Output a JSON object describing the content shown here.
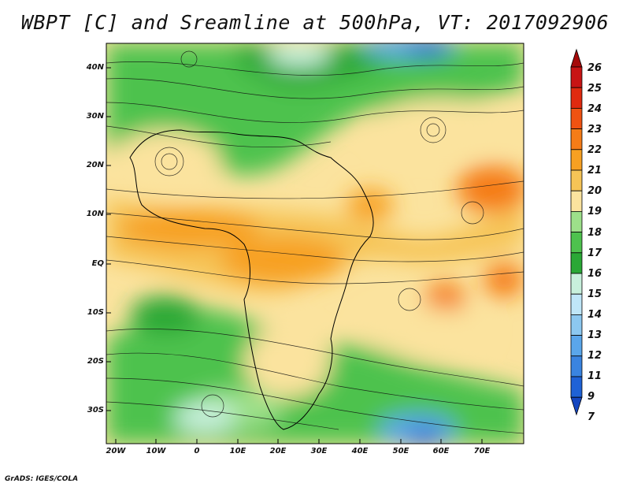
{
  "title": "WBPT [C] and Sreamline at 500hPa, VT: 2017092906",
  "credit": "GrADS: IGES/COLA",
  "map": {
    "lat_labels": [
      "40N",
      "30N",
      "20N",
      "10N",
      "EQ",
      "10S",
      "20S",
      "30S"
    ],
    "lon_labels": [
      "20W",
      "10W",
      "0",
      "10E",
      "20E",
      "30E",
      "40E",
      "50E",
      "60E",
      "70E"
    ]
  },
  "colorbar": {
    "labels": [
      "26",
      "25",
      "24",
      "23",
      "22",
      "21",
      "20",
      "19",
      "18",
      "17",
      "16",
      "15",
      "14",
      "13",
      "12",
      "11",
      "9",
      "7"
    ],
    "colors": [
      "#a50a0a",
      "#c81414",
      "#e02a0f",
      "#ef5212",
      "#f57c17",
      "#f7a022",
      "#f6c456",
      "#fbe39e",
      "#9de08a",
      "#4ec24e",
      "#2aa836",
      "#c8f0dc",
      "#bfe6f8",
      "#8cc8f0",
      "#5aa6ea",
      "#3a84e0",
      "#1f62d6",
      "#1446c0"
    ]
  }
}
